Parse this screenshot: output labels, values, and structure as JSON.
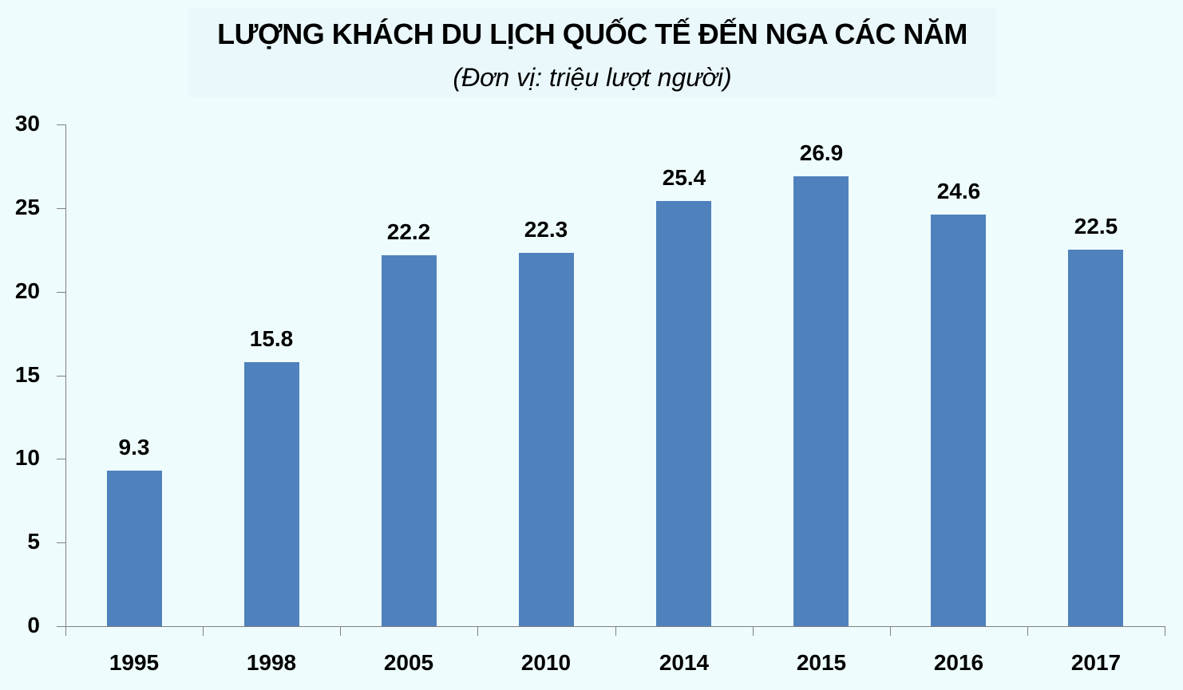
{
  "chart_data": {
    "type": "bar",
    "title": "LƯỢNG KHÁCH DU LỊCH QUỐC TẾ ĐẾN NGA CÁC NĂM",
    "subtitle": "(Đơn vị: triệu lượt người)",
    "xlabel": "",
    "ylabel": "",
    "categories": [
      "1995",
      "1998",
      "2005",
      "2010",
      "2014",
      "2015",
      "2016",
      "2017"
    ],
    "values": [
      9.3,
      15.8,
      22.2,
      22.3,
      25.4,
      26.9,
      24.6,
      22.5
    ],
    "data_labels": [
      "9.3",
      "15.8",
      "22.2",
      "22.3",
      "25.4",
      "26.9",
      "24.6",
      "22.5"
    ],
    "ylim": [
      0,
      30
    ],
    "yticks": [
      "0",
      "5",
      "10",
      "15",
      "20",
      "25",
      "30"
    ],
    "grid": false,
    "legend": null,
    "bar_color": "#4f81bd"
  }
}
